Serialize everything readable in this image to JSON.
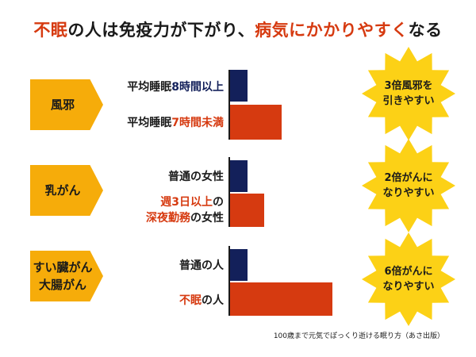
{
  "title": {
    "part1": "不眠",
    "part2": "の人は免疫力が下がり、",
    "part3": "病気にかかりやすく",
    "part4": "なる"
  },
  "colors": {
    "accent_orange": "#f6ac0a",
    "highlight_red": "#d63a10",
    "bar_navy": "#13205a",
    "bar_red": "#d63a10",
    "burst_yellow": "#fcd116"
  },
  "chart_data": {
    "type": "bar",
    "orientation": "horizontal",
    "scale": "relative (no numeric axis shown)",
    "groups": [
      {
        "category": "風邪",
        "bars": [
          {
            "label": "平均睡眠8時間以上",
            "value": 1,
            "status": "normal"
          },
          {
            "label": "平均睡眠7時間未満",
            "value": 3,
            "status": "risk"
          }
        ],
        "annotation": "3倍風邪を\n引きやすい"
      },
      {
        "category": "乳がん",
        "bars": [
          {
            "label": "普通の女性",
            "value": 1,
            "status": "normal"
          },
          {
            "label": "週3日以上の\n深夜勤務の女性",
            "value": 2,
            "status": "risk"
          }
        ],
        "annotation": "2倍がんに\nなりやすい"
      },
      {
        "category": "すい臓がん\n大腸がん",
        "bars": [
          {
            "label": "普通の人",
            "value": 1,
            "status": "normal"
          },
          {
            "label": "不眠の人",
            "value": 6,
            "status": "risk"
          }
        ],
        "annotation": "6倍がんに\nなりやすい"
      }
    ]
  },
  "labels": {
    "g0_b0_pre": "平均睡眠",
    "g0_b0_hl": "8時間以上",
    "g0_b1_pre": "平均睡眠",
    "g0_b1_hl": "7時間未満",
    "g1_b0": "普通の女性",
    "g1_b1_l1_hl": "週3日以上",
    "g1_b1_l1_post": "の",
    "g1_b1_l2_hl": "深夜勤務",
    "g1_b1_l2_post": "の女性",
    "g2_b0": "普通の人",
    "g2_b1_hl": "不眠",
    "g2_b1_post": "の人"
  },
  "source": "100歳まで元気でぽっくり逝ける眠り方（あさ出版）"
}
